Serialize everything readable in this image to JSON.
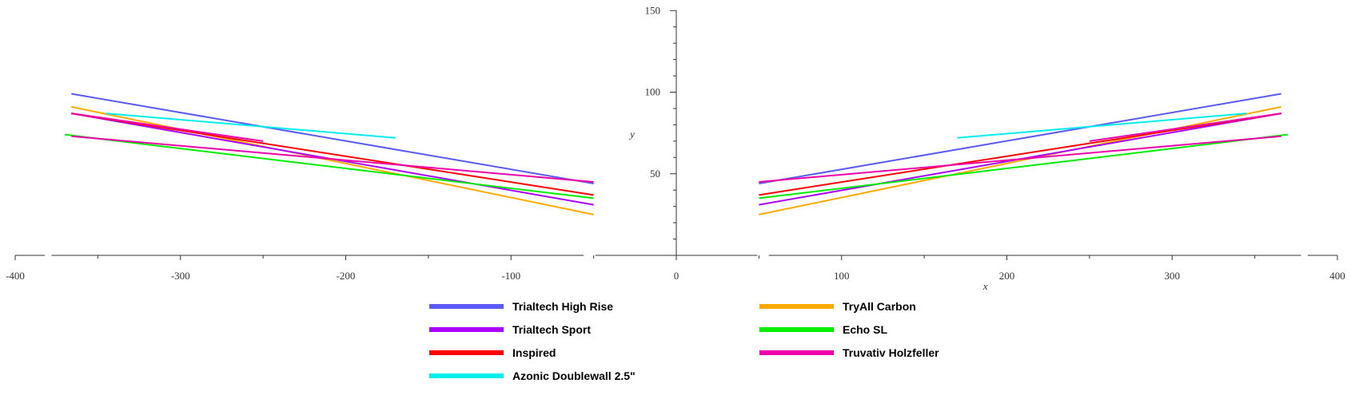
{
  "chart_data": {
    "type": "line",
    "xlabel": "x",
    "ylabel": "y",
    "xlim": [
      -400,
      400
    ],
    "ylim": [
      0,
      150
    ],
    "x_ticks": [
      -400,
      -300,
      -200,
      -100,
      0,
      100,
      200,
      300,
      400
    ],
    "y_ticks": [
      50,
      100,
      150
    ],
    "grid": false,
    "legend_position": "bottom",
    "series": [
      {
        "name": "Trialtech High Rise",
        "color": "#5a5af5",
        "segments": [
          [
            [
              -366,
              99
            ],
            [
              -50,
              44
            ]
          ],
          [
            [
              50,
              44
            ],
            [
              366,
              99
            ]
          ]
        ]
      },
      {
        "name": "TryAll Carbon",
        "color": "#ffaa00",
        "segments": [
          [
            [
              -366,
              91
            ],
            [
              -50,
              25
            ]
          ],
          [
            [
              50,
              25
            ],
            [
              366,
              91
            ]
          ]
        ]
      },
      {
        "name": "Trialtech Sport",
        "color": "#aa00ff",
        "segments": [
          [
            [
              -366,
              87
            ],
            [
              -50,
              31
            ]
          ],
          [
            [
              50,
              31
            ],
            [
              366,
              87
            ]
          ]
        ]
      },
      {
        "name": "Echo SL",
        "color": "#00ee00",
        "segments": [
          [
            [
              -370,
              74
            ],
            [
              -50,
              35
            ]
          ],
          [
            [
              50,
              35
            ],
            [
              370,
              74
            ]
          ]
        ]
      },
      {
        "name": "Inspired",
        "color": "#ff0000",
        "segments": [
          [
            [
              -366,
              87
            ],
            [
              -50,
              37
            ]
          ],
          [
            [
              50,
              37
            ],
            [
              366,
              87
            ]
          ]
        ]
      },
      {
        "name": "Truvativ Holzfeller",
        "color": "#ee00aa",
        "segments": [
          [
            [
              -366,
              73
            ],
            [
              -50,
              45
            ]
          ],
          [
            [
              50,
              45
            ],
            [
              366,
              73
            ]
          ],
          [
            [
              -366,
              87
            ],
            [
              -250,
              70
            ]
          ],
          [
            [
              250,
              70
            ],
            [
              366,
              87
            ]
          ]
        ]
      },
      {
        "name": "Azonic Doublewall 2.5\"",
        "color": "#00eeee",
        "segments": [
          [
            [
              -345,
              87
            ],
            [
              -170,
              72
            ]
          ],
          [
            [
              170,
              72
            ],
            [
              345,
              87
            ]
          ]
        ]
      }
    ]
  },
  "legend": [
    {
      "label": "Trialtech High Rise",
      "color": "#5a5af5"
    },
    {
      "label": "TryAll Carbon",
      "color": "#ffaa00"
    },
    {
      "label": "Trialtech Sport",
      "color": "#aa00ff"
    },
    {
      "label": "Echo SL",
      "color": "#00ee00"
    },
    {
      "label": "Inspired",
      "color": "#ff0000"
    },
    {
      "label": "Truvativ Holzfeller",
      "color": "#ee00aa"
    },
    {
      "label": "Azonic Doublewall 2.5\"",
      "color": "#00eeee"
    }
  ]
}
